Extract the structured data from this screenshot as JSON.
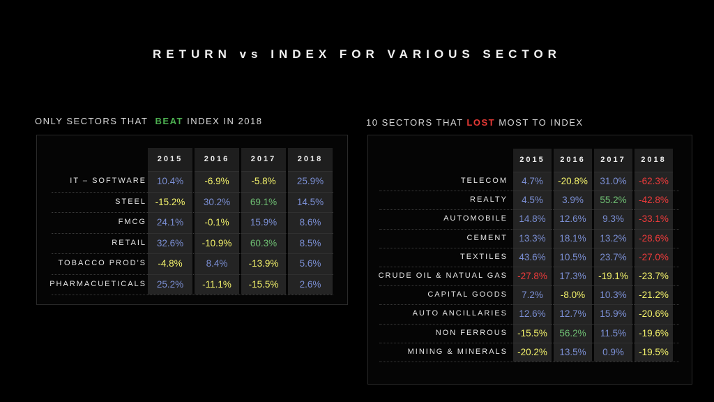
{
  "title": "RETURN vs INDEX FOR VARIOUS SECTOR",
  "left": {
    "heading_pre": "ONLY SECTORS THAT",
    "heading_em": "BEAT",
    "heading_post": "INDEX IN 2018",
    "years": [
      "2015",
      "2016",
      "2017",
      "2018"
    ],
    "rows": [
      {
        "label": "IT – SOFTWARE",
        "values": [
          "10.4%",
          "-6.9%",
          "-5.8%",
          "25.9%"
        ],
        "colors": [
          "#7b8fd4",
          "#f4f36b",
          "#f4f36b",
          "#7b8fd4"
        ]
      },
      {
        "label": "STEEL",
        "values": [
          "-15.2%",
          "30.2%",
          "69.1%",
          "14.5%"
        ],
        "colors": [
          "#f4f36b",
          "#7b8fd4",
          "#6fbf73",
          "#7b8fd4"
        ]
      },
      {
        "label": "FMCG",
        "values": [
          "24.1%",
          "-0.1%",
          "15.9%",
          "8.6%"
        ],
        "colors": [
          "#7b8fd4",
          "#f4f36b",
          "#7b8fd4",
          "#7b8fd4"
        ]
      },
      {
        "label": "RETAIL",
        "values": [
          "32.6%",
          "-10.9%",
          "60.3%",
          "8.5%"
        ],
        "colors": [
          "#7b8fd4",
          "#f4f36b",
          "#6fbf73",
          "#7b8fd4"
        ]
      },
      {
        "label": "TOBACCO PROD'S",
        "values": [
          "-4.8%",
          "8.4%",
          "-13.9%",
          "5.6%"
        ],
        "colors": [
          "#f4f36b",
          "#7b8fd4",
          "#f4f36b",
          "#7b8fd4"
        ]
      },
      {
        "label": "PHARMACUETICALS",
        "values": [
          "25.2%",
          "-11.1%",
          "-15.5%",
          "2.6%"
        ],
        "colors": [
          "#7b8fd4",
          "#f4f36b",
          "#f4f36b",
          "#7b8fd4"
        ]
      }
    ]
  },
  "right": {
    "heading_pre": "10 SECTORS THAT",
    "heading_em": "LOST",
    "heading_post": "MOST TO INDEX",
    "years": [
      "2015",
      "2016",
      "2017",
      "2018"
    ],
    "rows": [
      {
        "label": "TELECOM",
        "values": [
          "4.7%",
          "-20.8%",
          "31.0%",
          "-62.3%"
        ],
        "colors": [
          "#7b8fd4",
          "#f4f36b",
          "#7b8fd4",
          "#ef3b3b"
        ]
      },
      {
        "label": "REALTY",
        "values": [
          "4.5%",
          "3.9%",
          "55.2%",
          "-42.8%"
        ],
        "colors": [
          "#7b8fd4",
          "#7b8fd4",
          "#6fbf73",
          "#ef3b3b"
        ]
      },
      {
        "label": "AUTOMOBILE",
        "values": [
          "14.8%",
          "12.6%",
          "9.3%",
          "-33.1%"
        ],
        "colors": [
          "#7b8fd4",
          "#7b8fd4",
          "#7b8fd4",
          "#ef3b3b"
        ]
      },
      {
        "label": "CEMENT",
        "values": [
          "13.3%",
          "18.1%",
          "13.2%",
          "-28.6%"
        ],
        "colors": [
          "#7b8fd4",
          "#7b8fd4",
          "#7b8fd4",
          "#ef3b3b"
        ]
      },
      {
        "label": "TEXTILES",
        "values": [
          "43.6%",
          "10.5%",
          "23.7%",
          "-27.0%"
        ],
        "colors": [
          "#7b8fd4",
          "#7b8fd4",
          "#7b8fd4",
          "#ef3b3b"
        ]
      },
      {
        "label": "CRUDE OIL & NATUAL GAS",
        "values": [
          "-27.8%",
          "17.3%",
          "-19.1%",
          "-23.7%"
        ],
        "colors": [
          "#ef3b3b",
          "#7b8fd4",
          "#f4f36b",
          "#f4f36b"
        ]
      },
      {
        "label": "CAPITAL GOODS",
        "values": [
          "7.2%",
          "-8.0%",
          "10.3%",
          "-21.2%"
        ],
        "colors": [
          "#7b8fd4",
          "#f4f36b",
          "#7b8fd4",
          "#f4f36b"
        ]
      },
      {
        "label": "AUTO ANCILLARIES",
        "values": [
          "12.6%",
          "12.7%",
          "15.9%",
          "-20.6%"
        ],
        "colors": [
          "#7b8fd4",
          "#7b8fd4",
          "#7b8fd4",
          "#f4f36b"
        ]
      },
      {
        "label": "NON FERROUS",
        "values": [
          "-15.5%",
          "56.2%",
          "11.5%",
          "-19.6%"
        ],
        "colors": [
          "#f4f36b",
          "#6fbf73",
          "#7b8fd4",
          "#f4f36b"
        ]
      },
      {
        "label": "MINING & MINERALS",
        "values": [
          "-20.2%",
          "13.5%",
          "0.9%",
          "-19.5%"
        ],
        "colors": [
          "#f4f36b",
          "#7b8fd4",
          "#7b8fd4",
          "#f4f36b"
        ]
      }
    ]
  }
}
